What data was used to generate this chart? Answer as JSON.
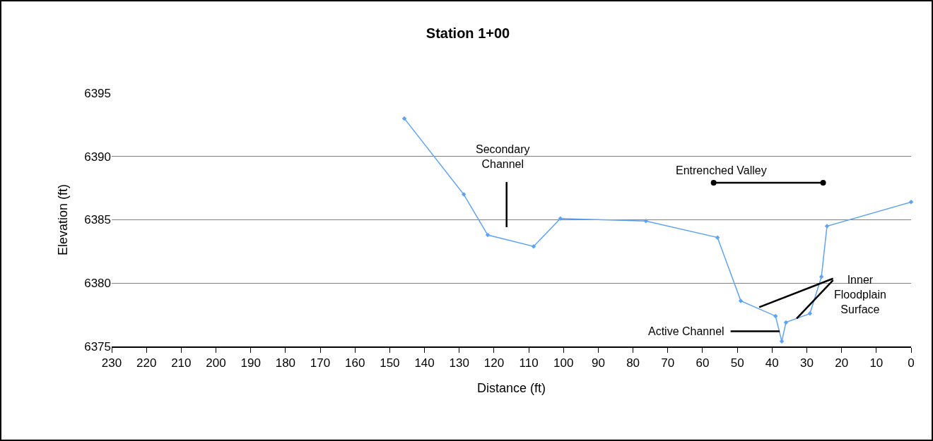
{
  "chart_data": {
    "type": "line",
    "title": "Station 1+00",
    "xlabel": "Distance (ft)",
    "ylabel": "Elevation (ft)",
    "x": [
      145.8,
      128.7,
      121.8,
      108.6,
      100.9,
      76.3,
      55.7,
      49,
      39,
      37.2,
      36,
      29.1,
      25.8,
      24.2,
      0
    ],
    "series": [
      {
        "color": "#5fa3f5",
        "values": [
          6393.0,
          6387.0,
          6383.8,
          6382.9,
          6385.1,
          6384.9,
          6383.6,
          6378.6,
          6377.4,
          6375.4,
          6376.9,
          6377.6,
          6380.5,
          6384.5,
          6386.4
        ]
      }
    ],
    "xlim": [
      230,
      0
    ],
    "xticks": [
      230,
      220,
      210,
      200,
      190,
      180,
      170,
      160,
      150,
      140,
      130,
      120,
      110,
      100,
      90,
      80,
      70,
      60,
      50,
      40,
      30,
      20,
      10,
      0
    ],
    "ylim": [
      6375,
      6395
    ],
    "yticks": [
      6375,
      6380,
      6385,
      6390,
      6395
    ],
    "grid": "y",
    "marker": "diamond",
    "line_style": "solid",
    "annotations": [
      "Secondary Channel",
      "Entrenched Valley",
      {
        "text": "Inner Floodplain Surface",
        "x": 43.7,
        "y": 6378.1
      },
      {
        "text": "Active Channel",
        "x": 37.8,
        "y": 6376.2
      }
    ]
  }
}
